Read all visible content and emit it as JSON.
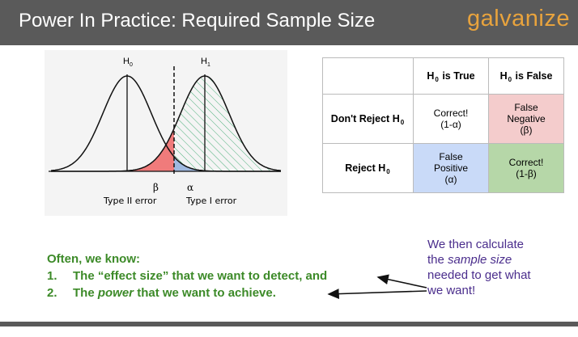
{
  "header": {
    "title": "Power In Practice: Required Sample Size",
    "logo": "galvanize",
    "background": "#5a5a5a",
    "logo_color": "#e8a33d"
  },
  "figure": {
    "label_h0": "H",
    "label_h0_sub": "0",
    "label_h1": "H",
    "label_h1_sub": "1",
    "beta_symbol": "β",
    "alpha_symbol": "α",
    "type2_label": "Type II error",
    "type1_label": "Type I error",
    "beta_color": "#f07b7b",
    "alpha_color": "#9fb8e0",
    "hatch_color": "#4caf7a"
  },
  "matrix": {
    "col1_header": "is True",
    "col2_header": "is False",
    "h_letter": "H",
    "h_sub": "0",
    "row1_header": "Don't Reject H",
    "row2_header": "Reject H",
    "cell_r1c1_line1": "Correct!",
    "cell_r1c1_line2": "(1-α)",
    "cell_r1c2_line1": "False",
    "cell_r1c2_line2": "Negative",
    "cell_r1c2_line3": "(β)",
    "cell_r2c1_line1": "False",
    "cell_r2c1_line2": "Positive",
    "cell_r2c1_line3": "(α)",
    "cell_r2c2_line1": "Correct!",
    "cell_r2c2_line2": "(1-β)",
    "red": "#f4cccc",
    "blue": "#c9daf8",
    "green": "#b6d7a8"
  },
  "text": {
    "intro": "Often, we know:",
    "item1_num": "1.",
    "item1_text": "The “effect size” that we want to detect, and",
    "item2_num": "2.",
    "item2_pre": "The ",
    "item2_em": "power",
    "item2_post": " that we want to achieve.",
    "green_color": "#3c8a28"
  },
  "note": {
    "line1": "We then calculate",
    "line2_pre": "the ",
    "line2_em": "sample size",
    "line3": "needed to get what",
    "line4": "we want!",
    "color": "#4a2d8c"
  }
}
